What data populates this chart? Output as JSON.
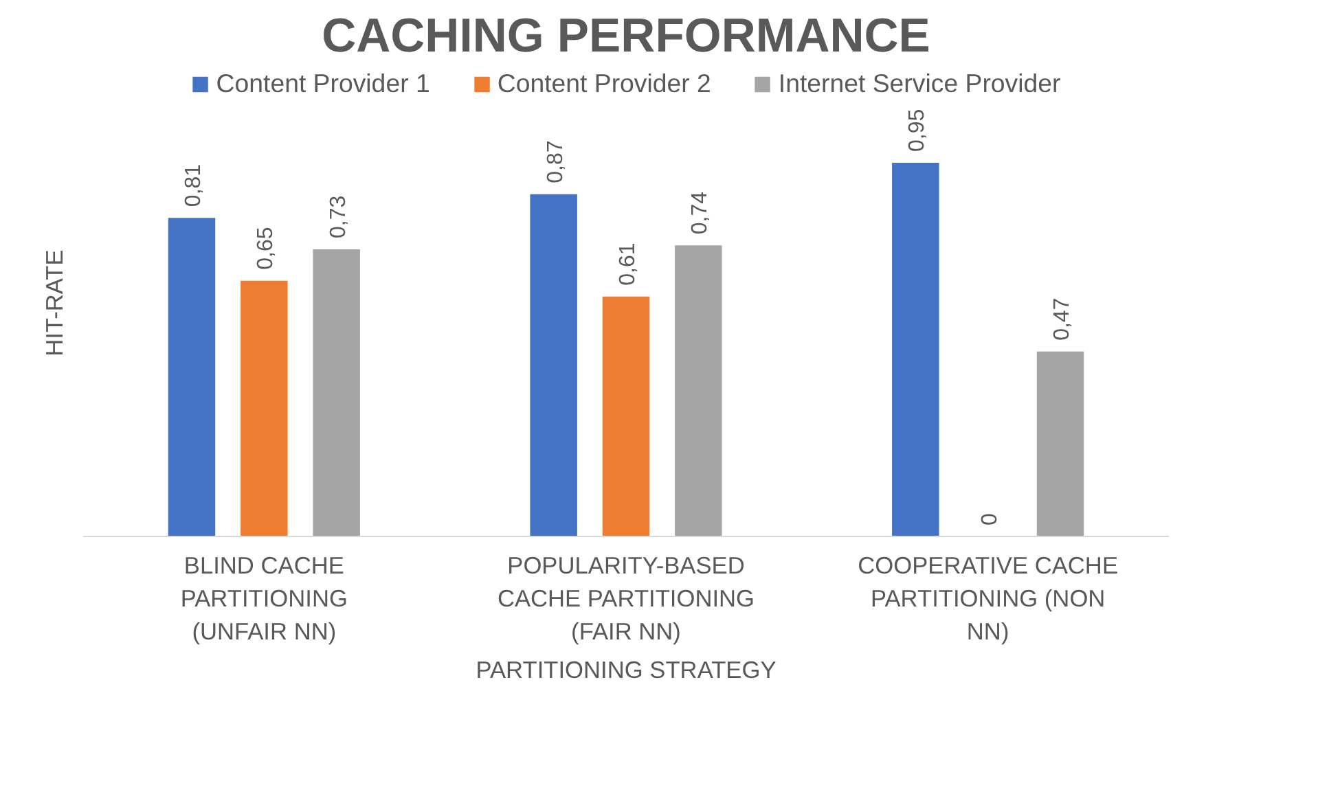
{
  "chart_data": {
    "type": "bar",
    "title": "CACHING PERFORMANCE",
    "xlabel": "PARTITIONING STRATEGY",
    "ylabel": "HIT-RATE",
    "categories": [
      "BLIND CACHE PARTITIONING (UNFAIR NN)",
      "POPULARITY-BASED CACHE PARTITIONING (FAIR NN)",
      "COOPERATIVE CACHE PARTITIONING (NON NN)"
    ],
    "series": [
      {
        "name": "Content Provider 1",
        "color": "#4472c4",
        "values": [
          0.81,
          0.87,
          0.95
        ],
        "value_labels": [
          "0,81",
          "0,87",
          "0,95"
        ]
      },
      {
        "name": "Content Provider 2",
        "color": "#ed7d31",
        "values": [
          0.65,
          0.61,
          0
        ],
        "value_labels": [
          "0,65",
          "0,61",
          "0"
        ]
      },
      {
        "name": "Internet Service Provider",
        "color": "#a5a5a5",
        "values": [
          0.73,
          0.74,
          0.47
        ],
        "value_labels": [
          "0,73",
          "0,74",
          "0,47"
        ]
      }
    ],
    "tick_labels": "x",
    "grid": false,
    "legend": "top"
  }
}
